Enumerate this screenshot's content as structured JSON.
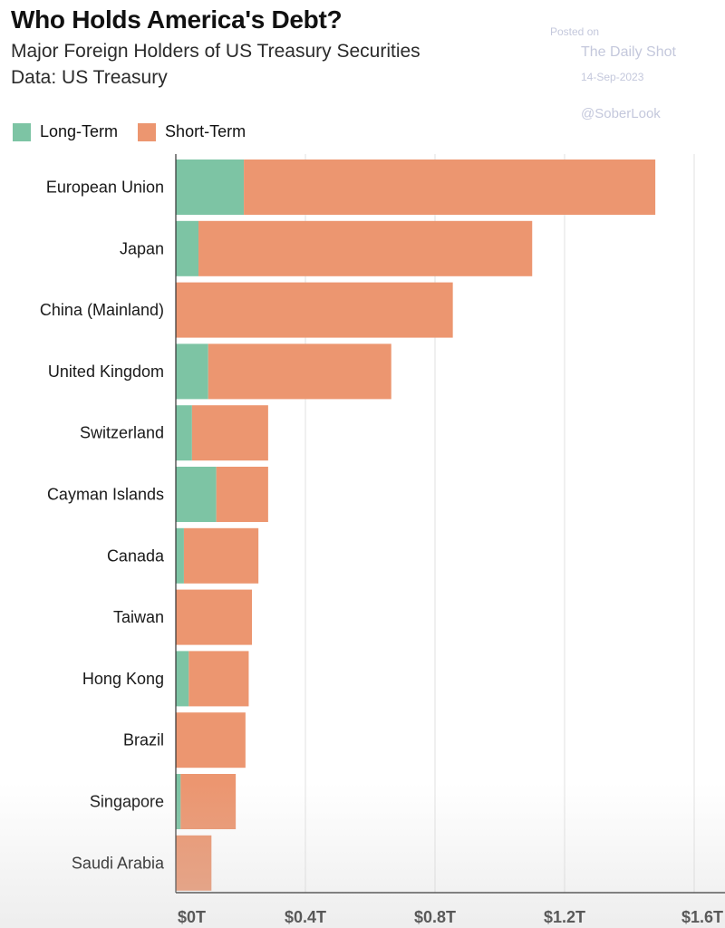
{
  "header": {
    "title": "Who Holds America's Debt?",
    "subtitle": "Major Foreign Holders of US Treasury Securities",
    "source": "Data: US Treasury"
  },
  "watermark": {
    "posted": "Posted on",
    "publisher": "The Daily Shot",
    "date": "14-Sep-2023",
    "handle": "@SoberLook"
  },
  "colors": {
    "long_term": "#7dc4a4",
    "short_term": "#ec9670",
    "grid": "#e2e2e2",
    "axis": "#333333"
  },
  "chart_data": {
    "type": "bar",
    "orientation": "horizontal",
    "stacked": true,
    "title": "Who Holds America's Debt?",
    "subtitle": "Major Foreign Holders of US Treasury Securities",
    "unit": "trillion USD",
    "categories": [
      "European Union",
      "Japan",
      "China (Mainland)",
      "United Kingdom",
      "Switzerland",
      "Cayman Islands",
      "Canada",
      "Taiwan",
      "Hong Kong",
      "Brazil",
      "Singapore",
      "Saudi Arabia"
    ],
    "series": [
      {
        "name": "Long-Term",
        "values": [
          0.21,
          0.07,
          0.0,
          0.1,
          0.05,
          0.125,
          0.025,
          0.0,
          0.04,
          0.0,
          0.015,
          0.0
        ]
      },
      {
        "name": "Short-Term",
        "values": [
          1.27,
          1.03,
          0.855,
          0.565,
          0.235,
          0.16,
          0.23,
          0.235,
          0.185,
          0.215,
          0.17,
          0.11
        ]
      }
    ],
    "xlim": [
      0,
      1.6
    ],
    "xticks": [
      0,
      0.4,
      0.8,
      1.2,
      1.6
    ],
    "xtick_labels": [
      "$0T",
      "$0.4T",
      "$0.8T",
      "$1.2T",
      "$1.6T"
    ],
    "grid": true,
    "legend_position": "top-left"
  }
}
